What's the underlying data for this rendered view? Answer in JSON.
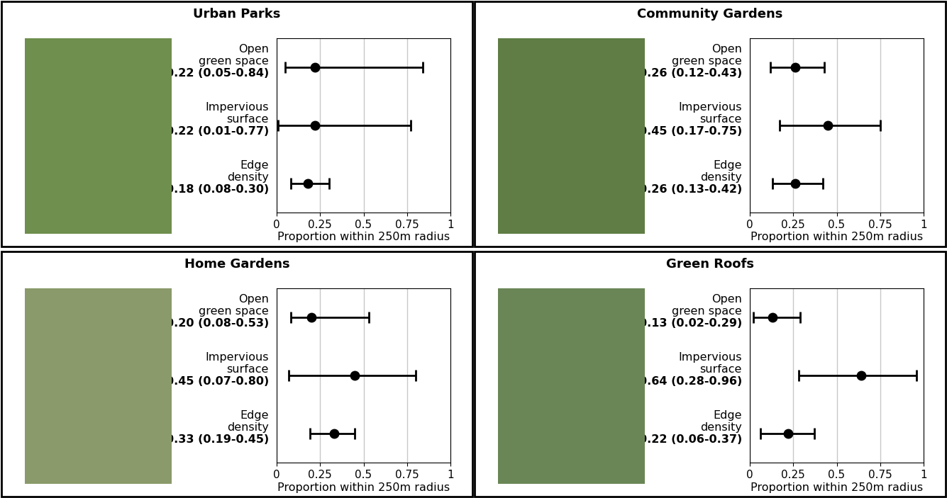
{
  "chart_data": [
    {
      "type": "dot",
      "title": "Urban Parks",
      "categories": [
        "Open green space",
        "Impervious surface",
        "Edge density"
      ],
      "values": [
        0.22,
        0.22,
        0.18
      ],
      "lower": [
        0.05,
        0.01,
        0.08
      ],
      "upper": [
        0.84,
        0.77,
        0.3
      ],
      "value_labels": [
        "0.22 (0.05-0.84)",
        "0.22 (0.01-0.77)",
        "0.18 (0.08-0.30)"
      ],
      "xlabel": "Proportion within 250m radius",
      "xlim": [
        0,
        1
      ],
      "xticks": [
        0,
        0.25,
        0.5,
        0.75,
        1
      ],
      "grid": true,
      "color": "#000000",
      "marker": "o"
    },
    {
      "type": "dot",
      "title": "Community Gardens",
      "categories": [
        "Open green space",
        "Impervious surface",
        "Edge density"
      ],
      "values": [
        0.26,
        0.45,
        0.26
      ],
      "lower": [
        0.12,
        0.17,
        0.13
      ],
      "upper": [
        0.43,
        0.75,
        0.42
      ],
      "value_labels": [
        "0.26 (0.12-0.43)",
        "0.45 (0.17-0.75)",
        "0.26 (0.13-0.42)"
      ],
      "xlabel": "Proportion within 250m radius",
      "xlim": [
        0,
        1
      ],
      "xticks": [
        0,
        0.25,
        0.5,
        0.75,
        1
      ],
      "grid": true,
      "color": "#000000",
      "marker": "o"
    },
    {
      "type": "dot",
      "title": "Home Gardens",
      "categories": [
        "Open green space",
        "Impervious surface",
        "Edge density"
      ],
      "values": [
        0.2,
        0.45,
        0.33
      ],
      "lower": [
        0.08,
        0.07,
        0.19
      ],
      "upper": [
        0.53,
        0.8,
        0.45
      ],
      "value_labels": [
        "0.20 (0.08-0.53)",
        "0.45 (0.07-0.80)",
        "0.33 (0.19-0.45)"
      ],
      "xlabel": "Proportion within 250m radius",
      "xlim": [
        0,
        1
      ],
      "xticks": [
        0,
        0.25,
        0.5,
        0.75,
        1
      ],
      "grid": true,
      "color": "#000000",
      "marker": "o"
    },
    {
      "type": "dot",
      "title": "Green Roofs",
      "categories": [
        "Open green space",
        "Impervious surface",
        "Edge density"
      ],
      "values": [
        0.13,
        0.64,
        0.22
      ],
      "lower": [
        0.02,
        0.28,
        0.06
      ],
      "upper": [
        0.29,
        0.96,
        0.37
      ],
      "value_labels": [
        "0.13 (0.02-0.29)",
        "0.64 (0.28-0.96)",
        "0.22 (0.06-0.37)"
      ],
      "xlabel": "Proportion within 250m radius",
      "xlim": [
        0,
        1
      ],
      "xticks": [
        0,
        0.25,
        0.5,
        0.75,
        1
      ],
      "grid": true,
      "color": "#000000",
      "marker": "o"
    }
  ]
}
